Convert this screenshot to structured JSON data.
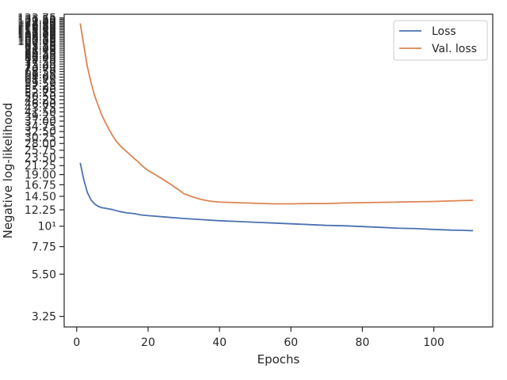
{
  "chart_data": {
    "type": "line",
    "title": "",
    "xlabel": "Epochs",
    "ylabel": "Negative log-likelihood",
    "xlim": [
      -3.5,
      116.5
    ],
    "ylim": [
      2.85,
      140
    ],
    "yscale": "log",
    "grid": false,
    "legend_position": "top-right",
    "x_ticks": [
      0,
      20,
      40,
      60,
      80,
      100
    ],
    "y_ticks": [
      {
        "value": 3.25,
        "label": "3.25"
      },
      {
        "value": 5.5,
        "label": "5.50"
      },
      {
        "value": 7.75,
        "label": "7.75"
      },
      {
        "value": 10,
        "label": "10¹"
      },
      {
        "value": 12.25,
        "label": "12.25"
      },
      {
        "value": 14.5,
        "label": "14.50"
      },
      {
        "value": 16.75,
        "label": "16.75"
      },
      {
        "value": 19,
        "label": "19.00"
      },
      {
        "value": 21.25,
        "label": "21.25"
      },
      {
        "value": 23.5,
        "label": "23.50"
      },
      {
        "value": 25.75,
        "label": "25.75"
      },
      {
        "value": 28,
        "label": "28.00"
      },
      {
        "value": 30.25,
        "label": "30.25"
      },
      {
        "value": 32.5,
        "label": "32.50"
      },
      {
        "value": 34.75,
        "label": "34.75"
      },
      {
        "value": 37,
        "label": "37.00"
      },
      {
        "value": 39.25,
        "label": "39.25"
      },
      {
        "value": 41.5,
        "label": "41.50"
      },
      {
        "value": 43.75,
        "label": "43.75"
      },
      {
        "value": 46,
        "label": "46.00"
      },
      {
        "value": 48.25,
        "label": "48.25"
      },
      {
        "value": 50.5,
        "label": "50.50"
      },
      {
        "value": 52.75,
        "label": "52.75"
      },
      {
        "value": 55,
        "label": "55.00"
      },
      {
        "value": 57.25,
        "label": "57.25"
      },
      {
        "value": 59.5,
        "label": "59.50"
      },
      {
        "value": 61.75,
        "label": "61.75"
      },
      {
        "value": 64,
        "label": "64.00"
      },
      {
        "value": 66.25,
        "label": "66.25"
      },
      {
        "value": 68.5,
        "label": "68.50"
      },
      {
        "value": 70.75,
        "label": "70.75"
      },
      {
        "value": 73,
        "label": "73.00"
      },
      {
        "value": 75.25,
        "label": "75.25"
      },
      {
        "value": 77.5,
        "label": "77.50"
      },
      {
        "value": 79.75,
        "label": "79.75"
      },
      {
        "value": 82,
        "label": "82.00"
      },
      {
        "value": 84.25,
        "label": "84.25"
      },
      {
        "value": 86.5,
        "label": "86.50"
      },
      {
        "value": 88.75,
        "label": "88.75"
      },
      {
        "value": 91,
        "label": "91.00"
      },
      {
        "value": 93.25,
        "label": "93.25"
      },
      {
        "value": 95.5,
        "label": "95.50"
      },
      {
        "value": 97.75,
        "label": "97.75"
      },
      {
        "value": 100,
        "label": "100.00"
      },
      {
        "value": 102.25,
        "label": "102.25"
      },
      {
        "value": 104.5,
        "label": "104.50"
      },
      {
        "value": 106.75,
        "label": "106.75"
      },
      {
        "value": 109,
        "label": "109.00"
      },
      {
        "value": 111.25,
        "label": "111.25"
      },
      {
        "value": 113.5,
        "label": "113.50"
      },
      {
        "value": 115.75,
        "label": "115.75"
      },
      {
        "value": 118,
        "label": "118.00"
      },
      {
        "value": 120.25,
        "label": "120.25"
      },
      {
        "value": 122.5,
        "label": "122.50"
      },
      {
        "value": 124.75,
        "label": "124.75"
      },
      {
        "value": 127,
        "label": "127.00"
      },
      {
        "value": 129.25,
        "label": "129.25"
      },
      {
        "value": 131.5,
        "label": "131.50"
      },
      {
        "value": 133.75,
        "label": "133.75"
      }
    ],
    "series": [
      {
        "name": "Loss",
        "color": "#4c72b0",
        "points": [
          [
            1,
            22.0
          ],
          [
            2,
            17.8
          ],
          [
            3,
            15.2
          ],
          [
            4,
            13.9
          ],
          [
            5,
            13.2
          ],
          [
            6,
            12.8
          ],
          [
            7,
            12.6
          ],
          [
            8,
            12.5
          ],
          [
            9,
            12.4
          ],
          [
            10,
            12.3
          ],
          [
            12,
            12.0
          ],
          [
            14,
            11.8
          ],
          [
            16,
            11.7
          ],
          [
            18,
            11.5
          ],
          [
            20,
            11.4
          ],
          [
            25,
            11.2
          ],
          [
            30,
            11.0
          ],
          [
            35,
            10.85
          ],
          [
            40,
            10.7
          ],
          [
            45,
            10.6
          ],
          [
            50,
            10.5
          ],
          [
            55,
            10.4
          ],
          [
            60,
            10.3
          ],
          [
            65,
            10.2
          ],
          [
            70,
            10.1
          ],
          [
            75,
            10.05
          ],
          [
            80,
            9.95
          ],
          [
            85,
            9.85
          ],
          [
            90,
            9.75
          ],
          [
            95,
            9.7
          ],
          [
            100,
            9.6
          ],
          [
            105,
            9.52
          ],
          [
            108,
            9.5
          ],
          [
            111,
            9.45
          ]
        ]
      },
      {
        "name": "Val. loss",
        "color": "#dd8452",
        "points": [
          [
            1,
            125.0
          ],
          [
            2,
            95.0
          ],
          [
            3,
            73.0
          ],
          [
            4,
            60.0
          ],
          [
            5,
            51.0
          ],
          [
            6,
            45.0
          ],
          [
            7,
            40.0
          ],
          [
            8,
            36.5
          ],
          [
            9,
            33.5
          ],
          [
            10,
            31.0
          ],
          [
            11,
            29.0
          ],
          [
            12,
            27.5
          ],
          [
            13,
            26.3
          ],
          [
            14,
            25.3
          ],
          [
            15,
            24.3
          ],
          [
            16,
            23.3
          ],
          [
            17,
            22.5
          ],
          [
            18,
            21.5
          ],
          [
            19,
            20.7
          ],
          [
            20,
            20.0
          ],
          [
            22,
            19.0
          ],
          [
            24,
            18.0
          ],
          [
            26,
            17.0
          ],
          [
            28,
            16.0
          ],
          [
            30,
            15.0
          ],
          [
            32,
            14.5
          ],
          [
            34,
            14.1
          ],
          [
            36,
            13.8
          ],
          [
            38,
            13.6
          ],
          [
            40,
            13.5
          ],
          [
            45,
            13.4
          ],
          [
            50,
            13.3
          ],
          [
            55,
            13.2
          ],
          [
            60,
            13.2
          ],
          [
            65,
            13.25
          ],
          [
            70,
            13.25
          ],
          [
            75,
            13.35
          ],
          [
            80,
            13.4
          ],
          [
            85,
            13.45
          ],
          [
            90,
            13.5
          ],
          [
            95,
            13.55
          ],
          [
            100,
            13.6
          ],
          [
            105,
            13.7
          ],
          [
            108,
            13.75
          ],
          [
            111,
            13.8
          ]
        ]
      }
    ]
  }
}
